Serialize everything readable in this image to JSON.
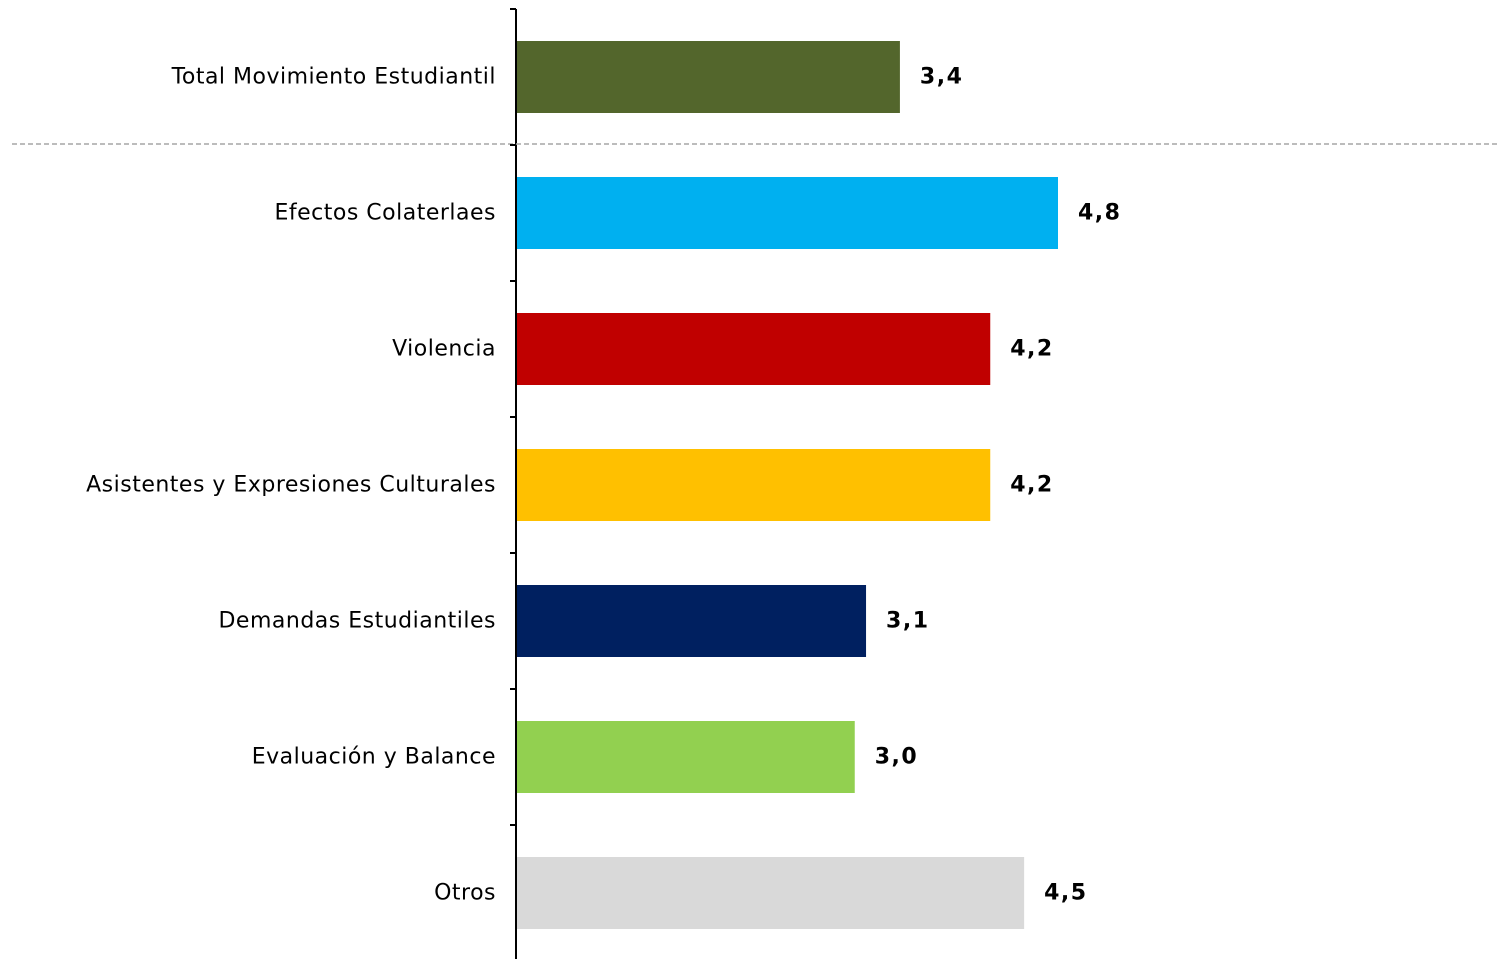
{
  "chart_data": {
    "type": "bar",
    "orientation": "horizontal",
    "categories": [
      "Total Movimiento Estudiantil",
      "Efectos Colaterlaes",
      "Violencia",
      "Asistentes y Expresiones Culturales",
      "Demandas Estudiantiles",
      "Evaluación y Balance",
      "Otros"
    ],
    "values": [
      3.4,
      4.8,
      4.2,
      4.2,
      3.1,
      3.0,
      4.5
    ],
    "value_labels": [
      "3,4",
      "4,8",
      "4,2",
      "4,2",
      "3,1",
      "3,0",
      "4,5"
    ],
    "colors": [
      "#53662c",
      "#00b0f0",
      "#c00000",
      "#ffc000",
      "#002060",
      "#92d050",
      "#d9d9d9"
    ],
    "separator_after_index": 0,
    "xlim": [
      0,
      8.6
    ],
    "grid": false,
    "legend": "none"
  }
}
